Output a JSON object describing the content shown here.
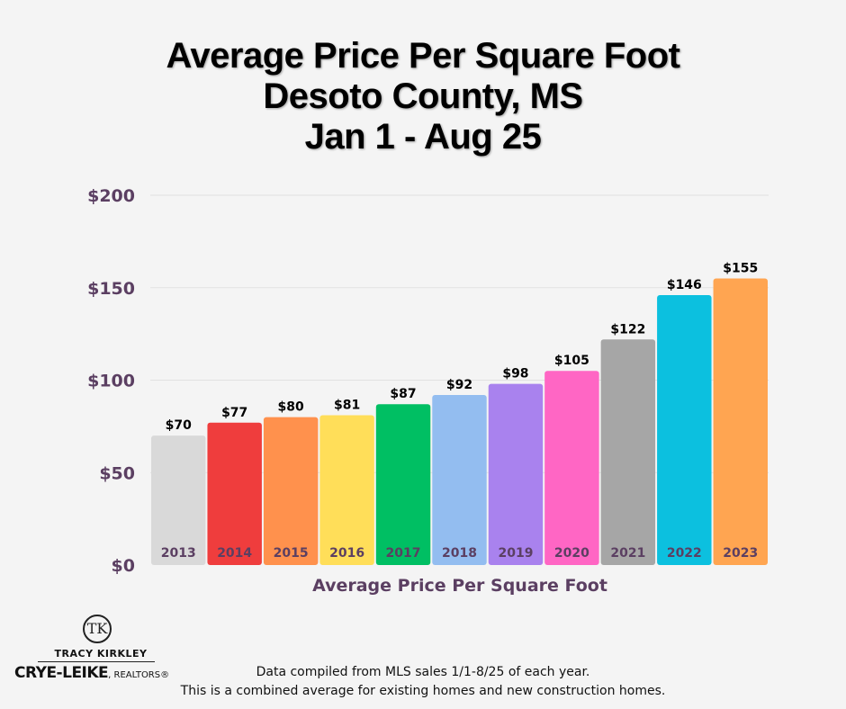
{
  "chart_data": {
    "type": "bar",
    "title_lines": [
      "Average Price Per Square Foot",
      "Desoto County, MS",
      "Jan 1 - Aug 25"
    ],
    "xlabel": "Average Price Per Square Foot",
    "ylabel": "",
    "categories": [
      "2013",
      "2014",
      "2015",
      "2016",
      "2017",
      "2018",
      "2019",
      "2020",
      "2021",
      "2022",
      "2023"
    ],
    "values": [
      70,
      77,
      80,
      81,
      87,
      92,
      98,
      105,
      122,
      146,
      155
    ],
    "value_labels": [
      "$70",
      "$77",
      "$80",
      "$81",
      "$87",
      "$92",
      "$98",
      "$105",
      "$122",
      "$146",
      "$155"
    ],
    "bar_colors": [
      "#d9d9d9",
      "#ef3d3d",
      "#ff914d",
      "#ffde59",
      "#00bf63",
      "#93bdf0",
      "#a982ee",
      "#ff66c4",
      "#a6a6a6",
      "#0cc0df",
      "#ffa551"
    ],
    "ylim": [
      0,
      200
    ],
    "yticks": [
      0,
      50,
      100,
      150,
      200
    ],
    "ytick_labels": [
      "$0",
      "$50",
      "$100",
      "$150",
      "$200"
    ],
    "grid": true,
    "legend": "none"
  },
  "logo": {
    "monogram": "TK",
    "top_text": "TRACY KIRKLEY",
    "brand": "CRYE-LEIKE",
    "brand_suffix": ", REALTORS®"
  },
  "footnote": {
    "line1": "Data compiled from MLS sales 1/1-8/25 of each year.",
    "line2": "This is a combined average for existing homes and new construction homes."
  }
}
